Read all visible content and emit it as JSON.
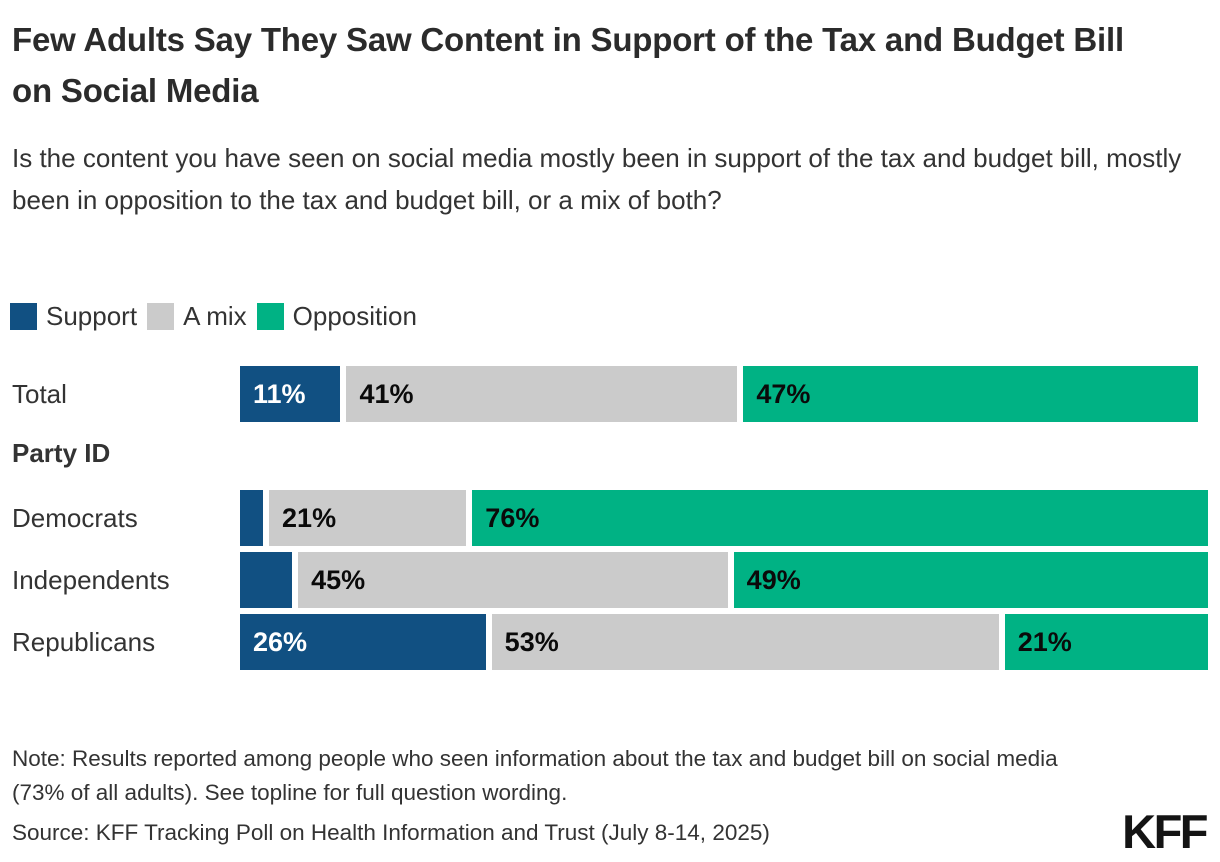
{
  "title": "Few Adults Say They Saw Content in Support of the Tax and Budget Bill on Social Media",
  "subtitle": "Is the content you have seen on social media mostly been in support of the tax and budget bill, mostly been in opposition to the tax and budget bill, or a mix of both?",
  "colors": {
    "support_blue": "#115082",
    "mix_gray": "#CBCBCB",
    "opposition_green": "#00B284",
    "text_dark": "#333333",
    "label_on_dark": "#FFFFFF",
    "label_on_light": "#0A0A0A"
  },
  "legend": [
    {
      "label": "Support",
      "color": "#115082"
    },
    {
      "label": "A mix",
      "color": "#CBCBCB"
    },
    {
      "label": "Opposition",
      "color": "#00B284"
    }
  ],
  "section_header": "Party ID",
  "chart_data": {
    "type": "bar",
    "orientation": "horizontal-stacked",
    "unit": "percent",
    "xlim": [
      0,
      100
    ],
    "grid": false,
    "legend_position": "top-left",
    "categories": [
      "Total",
      "Democrats",
      "Independents",
      "Republicans"
    ],
    "series": [
      {
        "name": "Support",
        "color": "#115082",
        "values": [
          11,
          3,
          6,
          26
        ],
        "labels": [
          "11%",
          "",
          "",
          "26%"
        ]
      },
      {
        "name": "A mix",
        "color": "#CBCBCB",
        "values": [
          41,
          21,
          45,
          53
        ],
        "labels": [
          "41%",
          "21%",
          "45%",
          "53%"
        ]
      },
      {
        "name": "Opposition",
        "color": "#00B284",
        "values": [
          47,
          76,
          49,
          21
        ],
        "labels": [
          "47%",
          "76%",
          "49%",
          "21%"
        ]
      }
    ]
  },
  "note": "Note: Results reported among people who seen information about the tax and budget bill on social media (73% of all adults). See topline for full question wording.",
  "source": "Source: KFF Tracking Poll on Health Information and Trust  (July 8-14, 2025)",
  "logo": "KFF"
}
